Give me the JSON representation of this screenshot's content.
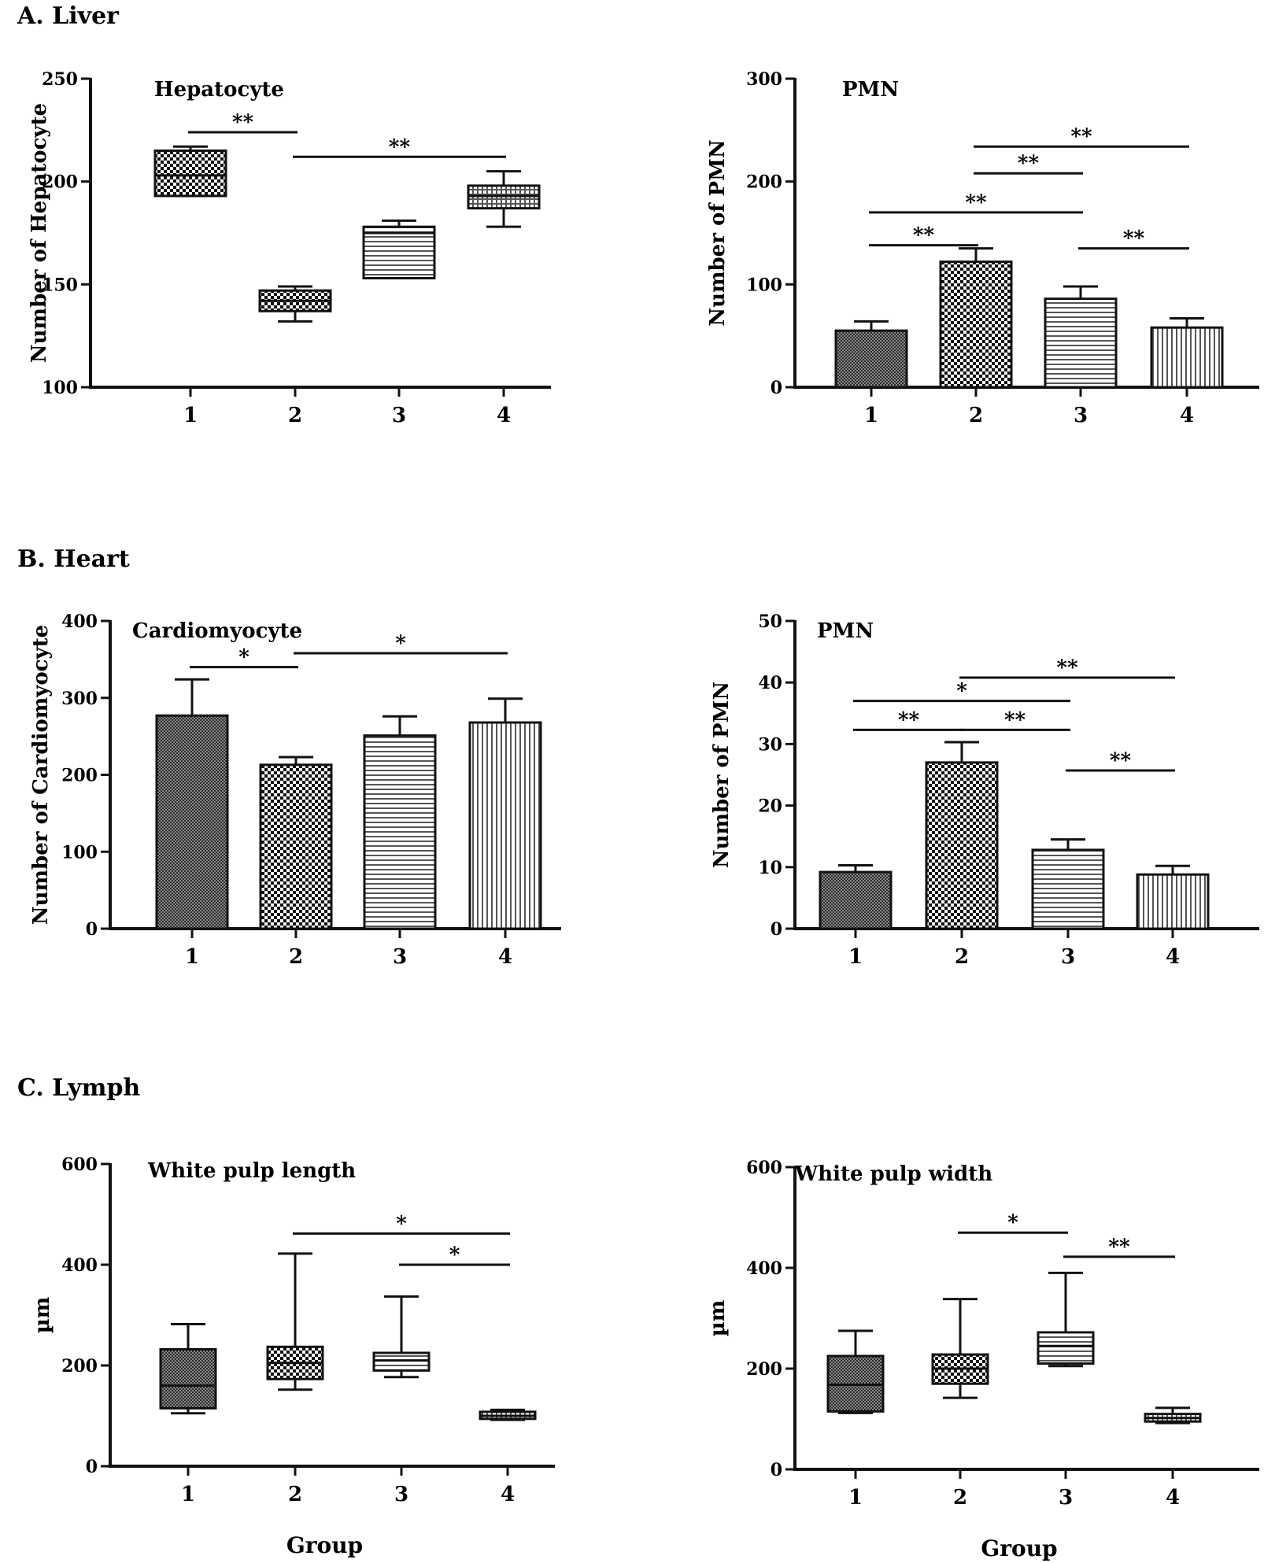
{
  "sections": [
    {
      "label": "A. Liver"
    },
    {
      "label": "B. Heart"
    },
    {
      "label": "C. Lymph"
    }
  ],
  "chart_data": [
    {
      "type": "box",
      "section": "A. Liver",
      "title": "Hepatocyte",
      "xlabel": "",
      "ylabel": "Number of Hepatocyte",
      "ylim": [
        100,
        250
      ],
      "yticks": [
        100,
        150,
        200,
        250
      ],
      "categories": [
        "1",
        "2",
        "3",
        "4"
      ],
      "boxes": [
        {
          "group": "1",
          "min": 193,
          "q1": 193,
          "median": 203,
          "q3": 215,
          "max": 217,
          "pattern": "checker"
        },
        {
          "group": "2",
          "min": 132,
          "q1": 137,
          "median": 142,
          "q3": 147,
          "max": 149,
          "pattern": "checker"
        },
        {
          "group": "3",
          "min": 153,
          "q1": 153,
          "median": 175,
          "q3": 178,
          "max": 181,
          "pattern": "hlines"
        },
        {
          "group": "4",
          "min": 178,
          "q1": 187,
          "median": 193,
          "q3": 198,
          "max": 205,
          "pattern": "grid"
        }
      ],
      "significance": [
        {
          "from": "1",
          "to": "2",
          "label": "**",
          "y": 224
        },
        {
          "from": "2",
          "to": "4",
          "label": "**",
          "y": 212
        }
      ]
    },
    {
      "type": "bar",
      "section": "A. Liver",
      "title": "PMN",
      "xlabel": "",
      "ylabel": "Number of PMN",
      "ylim": [
        0,
        300
      ],
      "yticks": [
        0,
        100,
        200,
        300
      ],
      "categories": [
        "1",
        "2",
        "3",
        "4"
      ],
      "values": [
        55,
        122,
        86,
        58
      ],
      "errors": [
        9,
        13,
        12,
        9
      ],
      "patterns": [
        "fine",
        "checker",
        "hlines",
        "vlines"
      ],
      "significance": [
        {
          "from": "1",
          "to": "2",
          "label": "**",
          "y": 138
        },
        {
          "from": "1",
          "to": "3",
          "label": "**",
          "y": 170
        },
        {
          "from": "2",
          "to": "3",
          "label": "**",
          "y": 208
        },
        {
          "from": "2",
          "to": "4",
          "label": "**",
          "y": 234
        },
        {
          "from": "3",
          "to": "4",
          "label": "**",
          "y": 135
        }
      ]
    },
    {
      "type": "bar",
      "section": "B. Heart",
      "title": "Cardiomyocyte",
      "xlabel": "",
      "ylabel": "Number of Cardiomyocyte",
      "ylim": [
        0,
        400
      ],
      "yticks": [
        0,
        100,
        200,
        300,
        400
      ],
      "categories": [
        "1",
        "2",
        "3",
        "4"
      ],
      "values": [
        277,
        213,
        251,
        268
      ],
      "errors": [
        47,
        10,
        25,
        31
      ],
      "patterns": [
        "fine",
        "checker",
        "hlines",
        "vlines"
      ],
      "significance": [
        {
          "from": "1",
          "to": "2",
          "label": "*",
          "y": 340
        },
        {
          "from": "2",
          "to": "4",
          "label": "*",
          "y": 358
        }
      ]
    },
    {
      "type": "bar",
      "section": "B. Heart",
      "title": "PMN",
      "xlabel": "",
      "ylabel": "Number of PMN",
      "ylim": [
        0,
        50
      ],
      "yticks": [
        0,
        10,
        20,
        30,
        40,
        50
      ],
      "categories": [
        "1",
        "2",
        "3",
        "4"
      ],
      "values": [
        9.2,
        27,
        12.8,
        8.8
      ],
      "errors": [
        1.1,
        3.3,
        1.7,
        1.4
      ],
      "patterns": [
        "fine",
        "checker",
        "hlines",
        "vlines"
      ],
      "significance": [
        {
          "from": "1",
          "to": "2",
          "label": "**",
          "y": 32.3
        },
        {
          "from": "2",
          "to": "3",
          "label": "**",
          "y": 32.3
        },
        {
          "from": "1",
          "to": "3",
          "label": "*",
          "y": 37
        },
        {
          "from": "2",
          "to": "4",
          "label": "**",
          "y": 40.8
        },
        {
          "from": "3",
          "to": "4",
          "label": "**",
          "y": 25.7
        }
      ]
    },
    {
      "type": "box",
      "section": "C. Lymph",
      "title": "White pulp length",
      "xlabel": "Group",
      "ylabel": "µm",
      "ylim": [
        0,
        600
      ],
      "yticks": [
        0,
        200,
        400,
        600
      ],
      "categories": [
        "1",
        "2",
        "3",
        "4"
      ],
      "boxes": [
        {
          "group": "1",
          "min": 105,
          "q1": 115,
          "median": 160,
          "q3": 232,
          "max": 282,
          "pattern": "fine"
        },
        {
          "group": "2",
          "min": 152,
          "q1": 173,
          "median": 205,
          "q3": 237,
          "max": 422,
          "pattern": "checker"
        },
        {
          "group": "3",
          "min": 177,
          "q1": 190,
          "median": 210,
          "q3": 225,
          "max": 337,
          "pattern": "hlines"
        },
        {
          "group": "4",
          "min": 92,
          "q1": 94,
          "median": 100,
          "q3": 108,
          "max": 112,
          "pattern": "vlines"
        }
      ],
      "significance": [
        {
          "from": "2",
          "to": "4",
          "label": "*",
          "y": 462
        },
        {
          "from": "3",
          "to": "4",
          "label": "*",
          "y": 400
        }
      ]
    },
    {
      "type": "box",
      "section": "C. Lymph",
      "title": "White pulp width",
      "xlabel": "Group",
      "ylabel": "µm",
      "ylim": [
        0,
        600
      ],
      "yticks": [
        0,
        200,
        400,
        600
      ],
      "categories": [
        "1",
        "2",
        "3",
        "4"
      ],
      "boxes": [
        {
          "group": "1",
          "min": 112,
          "q1": 115,
          "median": 168,
          "q3": 225,
          "max": 275,
          "pattern": "fine"
        },
        {
          "group": "2",
          "min": 142,
          "q1": 170,
          "median": 200,
          "q3": 228,
          "max": 338,
          "pattern": "checker"
        },
        {
          "group": "3",
          "min": 205,
          "q1": 210,
          "median": 245,
          "q3": 272,
          "max": 390,
          "pattern": "hlines"
        },
        {
          "group": "4",
          "min": 92,
          "q1": 95,
          "median": 102,
          "q3": 110,
          "max": 122,
          "pattern": "vlines"
        }
      ],
      "significance": [
        {
          "from": "2",
          "to": "3",
          "label": "*",
          "y": 470
        },
        {
          "from": "3",
          "to": "4",
          "label": "**",
          "y": 422
        }
      ]
    }
  ]
}
